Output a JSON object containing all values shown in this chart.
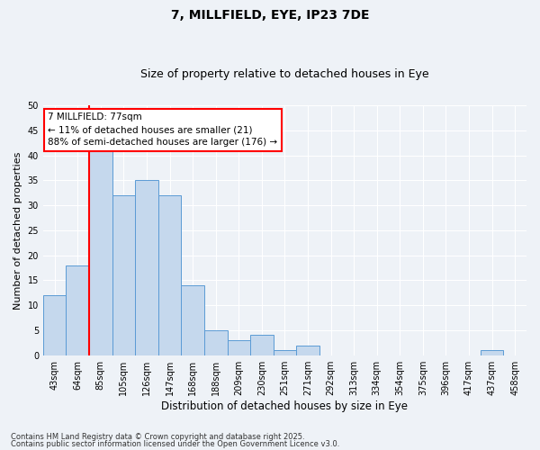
{
  "title1": "7, MILLFIELD, EYE, IP23 7DE",
  "title2": "Size of property relative to detached houses in Eye",
  "xlabel": "Distribution of detached houses by size in Eye",
  "ylabel": "Number of detached properties",
  "categories": [
    "43sqm",
    "64sqm",
    "85sqm",
    "105sqm",
    "126sqm",
    "147sqm",
    "168sqm",
    "188sqm",
    "209sqm",
    "230sqm",
    "251sqm",
    "271sqm",
    "292sqm",
    "313sqm",
    "334sqm",
    "354sqm",
    "375sqm",
    "396sqm",
    "417sqm",
    "437sqm",
    "458sqm"
  ],
  "values": [
    12,
    18,
    41,
    32,
    35,
    32,
    14,
    5,
    3,
    4,
    1,
    2,
    0,
    0,
    0,
    0,
    0,
    0,
    0,
    1,
    0
  ],
  "bar_color": "#c5d8ed",
  "bar_edge_color": "#5b9bd5",
  "ylim": [
    0,
    50
  ],
  "yticks": [
    0,
    5,
    10,
    15,
    20,
    25,
    30,
    35,
    40,
    45,
    50
  ],
  "red_line_x": 1.5,
  "annotation_line1": "7 MILLFIELD: 77sqm",
  "annotation_line2": "← 11% of detached houses are smaller (21)",
  "annotation_line3": "88% of semi-detached houses are larger (176) →",
  "footer1": "Contains HM Land Registry data © Crown copyright and database right 2025.",
  "footer2": "Contains public sector information licensed under the Open Government Licence v3.0.",
  "background_color": "#eef2f7",
  "grid_color": "#ffffff"
}
